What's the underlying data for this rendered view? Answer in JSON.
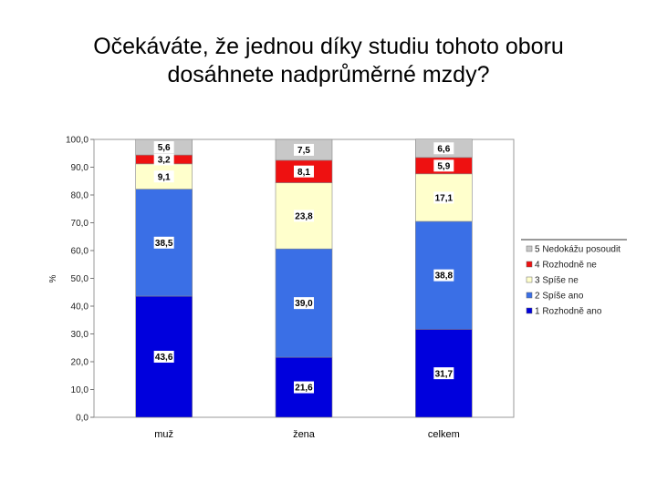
{
  "chart_data": {
    "type": "bar",
    "stacked": true,
    "title_lines": [
      "Očekáváte, že jednou díky studiu tohoto oboru",
      "dosáhnete nadprůměrné mzdy?"
    ],
    "ylabel": "%",
    "ylim": [
      0,
      100
    ],
    "yticks": [
      "0,0",
      "10,0",
      "20,0",
      "30,0",
      "40,0",
      "50,0",
      "60,0",
      "70,0",
      "80,0",
      "90,0",
      "100,0"
    ],
    "categories": [
      "muž",
      "žena",
      "celkem"
    ],
    "series": [
      {
        "name": "1 Rozhodně ano",
        "color": "#0000dd",
        "values": [
          43.6,
          21.6,
          31.7
        ],
        "labels": [
          "43,6",
          "21,6",
          "31,7"
        ]
      },
      {
        "name": "2 Spíše ano",
        "color": "#3a6fe6",
        "values": [
          38.5,
          39.0,
          38.8
        ],
        "labels": [
          "38,5",
          "39,0",
          "38,8"
        ]
      },
      {
        "name": "3 Spíše ne",
        "color": "#ffffcc",
        "values": [
          9.1,
          23.8,
          17.1
        ],
        "labels": [
          "9,1",
          "23,8",
          "17,1"
        ]
      },
      {
        "name": "4 Rozhodně ne",
        "color": "#ee1111",
        "values": [
          3.2,
          8.1,
          5.9
        ],
        "labels": [
          "3,2",
          "8,1",
          "5,9"
        ]
      },
      {
        "name": "5 Nedokážu posoudit",
        "color": "#c8c8c8",
        "values": [
          5.6,
          7.5,
          6.6
        ],
        "labels": [
          "5,6",
          "7,5",
          "6,6"
        ]
      }
    ],
    "legend_position": "right",
    "legend_order": [
      4,
      3,
      2,
      1,
      0
    ],
    "grid": false
  }
}
